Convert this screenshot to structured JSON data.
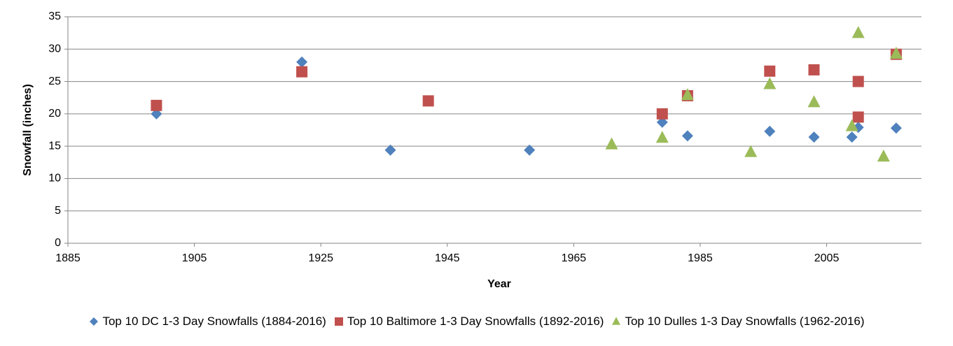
{
  "chart_data": {
    "type": "scatter",
    "xlabel": "Year",
    "ylabel": "Snowfall (inches)",
    "xlim": [
      1885,
      2020
    ],
    "xticks": [
      1885,
      1905,
      1925,
      1945,
      1965,
      1985,
      2005
    ],
    "ylim": [
      0,
      35
    ],
    "yticks": [
      0,
      5,
      10,
      15,
      20,
      25,
      30,
      35
    ],
    "grid": true,
    "series": [
      {
        "name": "Top 10 DC 1-3 Day Snowfalls (1884-2016)",
        "color": "#4f81bd",
        "marker": "diamond",
        "x": [
          1899,
          1922,
          1936,
          1958,
          1979,
          1983,
          1996,
          2003,
          2009,
          2010,
          2016
        ],
        "values": [
          20.0,
          28.0,
          14.4,
          14.4,
          18.7,
          16.6,
          17.3,
          16.4,
          16.4,
          17.9,
          17.8
        ]
      },
      {
        "name": "Top 10 Baltimore 1-3 Day Snowfalls (1892-2016)",
        "color": "#c0504d",
        "marker": "square",
        "x": [
          1899,
          1922,
          1942,
          1979,
          1983,
          1996,
          2003,
          2010,
          2010,
          2016
        ],
        "values": [
          21.3,
          26.5,
          22.0,
          20.0,
          22.8,
          26.6,
          26.8,
          25.0,
          19.5,
          29.2
        ]
      },
      {
        "name": "Top 10 Dulles 1-3 Day Snowfalls (1962-2016)",
        "color": "#9bbb59",
        "marker": "triangle",
        "x": [
          1971,
          1979,
          1983,
          1993,
          1996,
          2003,
          2009,
          2010,
          2014,
          2016
        ],
        "values": [
          15.3,
          16.3,
          22.9,
          14.1,
          24.6,
          21.8,
          18.1,
          32.5,
          13.4,
          29.3
        ]
      }
    ]
  }
}
